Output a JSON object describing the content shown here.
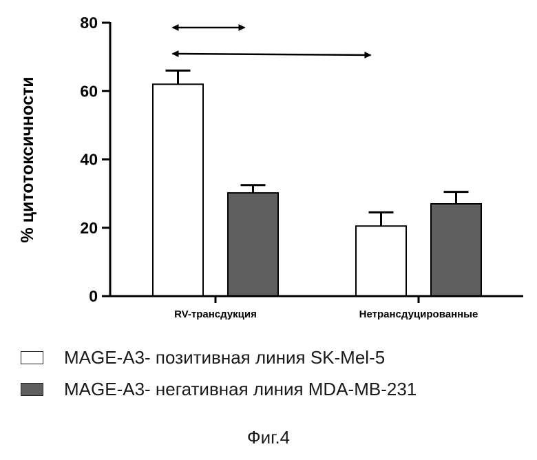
{
  "chart_data": {
    "type": "bar",
    "categories": [
      "RV-трансдукция",
      "Нетрансдуцированные"
    ],
    "series": [
      {
        "name": "MAGE-A3- позитивная линия SK-Mel-5",
        "values": [
          62,
          20.5
        ],
        "errors": [
          4,
          4
        ],
        "color": "#ffffff"
      },
      {
        "name": "MAGE-A3- негативная линия MDA-MB-231",
        "values": [
          30.2,
          27
        ],
        "errors": [
          2.3,
          3.5
        ],
        "color": "#5f5f5f"
      }
    ],
    "ylabel": "% цитотоксичности",
    "ylim": [
      0,
      80
    ],
    "yticks": [
      0,
      20,
      40,
      60,
      80
    ],
    "grid": false,
    "legend_position": "bottom-left",
    "annotations": [
      {
        "type": "double-arrow",
        "from": "RV-трансдукция / MAGE-A3- позитивная линия SK-Mel-5",
        "to": "RV-трансдукция / MAGE-A3- негативная линия MDA-MB-231"
      },
      {
        "type": "double-arrow",
        "from": "RV-трансдукция / MAGE-A3- позитивная линия SK-Mel-5",
        "to": "Нетрансдуцированные / MAGE-A3- позитивная линия SK-Mel-5"
      }
    ]
  },
  "legend": {
    "items": [
      {
        "label": "MAGE-A3- позитивная линия SK-Mel-5",
        "color": "#ffffff"
      },
      {
        "label": "MAGE-A3- негативная линия MDA-MB-231",
        "color": "#5f5f5f"
      }
    ]
  },
  "caption": "Фиг.4"
}
